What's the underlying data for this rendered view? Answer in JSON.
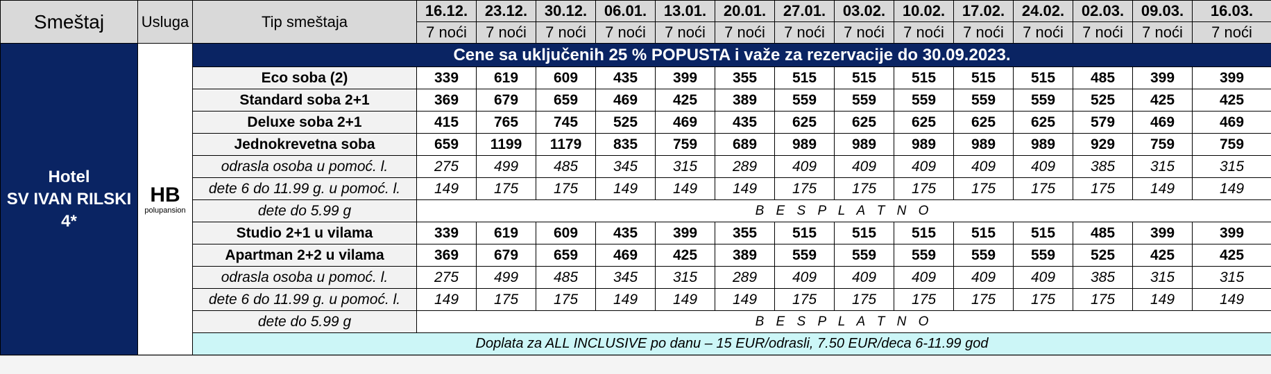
{
  "header": {
    "accommodation": "Smeštaj",
    "service": "Usluga",
    "room_type": "Tip smeštaja",
    "dates": [
      "16.12.",
      "23.12.",
      "30.12.",
      "06.01.",
      "13.01.",
      "20.01.",
      "27.01.",
      "03.02.",
      "10.02.",
      "17.02.",
      "24.02.",
      "02.03.",
      "09.03.",
      "16.03."
    ],
    "nights": [
      "7 noći",
      "7 noći",
      "7 noći",
      "7 noći",
      "7 noći",
      "7 noći",
      "7 noći",
      "7 noći",
      "7 noći",
      "7 noći",
      "7 noći",
      "7 noći",
      "7 noći",
      "7 noći"
    ]
  },
  "hotel": {
    "line1": "Hotel",
    "line2": "SV IVAN RILSKI",
    "line3": "4*"
  },
  "service": {
    "code": "HB",
    "name": "polupansion"
  },
  "banner": "Cene sa uključenih 25 % POPUSTA i važe za rezervacije do 30.09.2023.",
  "rows": [
    {
      "label": "Eco soba (2)",
      "values": [
        "339",
        "619",
        "609",
        "435",
        "399",
        "355",
        "515",
        "515",
        "515",
        "515",
        "515",
        "485",
        "399",
        "399"
      ]
    },
    {
      "label": "Standard soba 2+1",
      "values": [
        "369",
        "679",
        "659",
        "469",
        "425",
        "389",
        "559",
        "559",
        "559",
        "559",
        "559",
        "525",
        "425",
        "425"
      ]
    },
    {
      "label": "Deluxe soba 2+1",
      "values": [
        "415",
        "765",
        "745",
        "525",
        "469",
        "435",
        "625",
        "625",
        "625",
        "625",
        "625",
        "579",
        "469",
        "469"
      ]
    },
    {
      "label": "Jednokrevetna soba",
      "values": [
        "659",
        "1199",
        "1179",
        "835",
        "759",
        "689",
        "989",
        "989",
        "989",
        "989",
        "989",
        "929",
        "759",
        "759"
      ]
    },
    {
      "label": "odrasla osoba u pomoć. l.",
      "values": [
        "275",
        "499",
        "485",
        "345",
        "315",
        "289",
        "409",
        "409",
        "409",
        "409",
        "409",
        "385",
        "315",
        "315"
      ]
    },
    {
      "label": "dete 6 do 11.99 g. u pomoć. l.",
      "values": [
        "149",
        "175",
        "175",
        "149",
        "149",
        "149",
        "175",
        "175",
        "175",
        "175",
        "175",
        "175",
        "149",
        "149"
      ]
    },
    {
      "label": "dete do 5.99 g",
      "free": "B E S P L A T N O"
    },
    {
      "label": "Studio 2+1 u vilama",
      "values": [
        "339",
        "619",
        "609",
        "435",
        "399",
        "355",
        "515",
        "515",
        "515",
        "515",
        "515",
        "485",
        "399",
        "399"
      ]
    },
    {
      "label": "Apartman 2+2 u vilama",
      "values": [
        "369",
        "679",
        "659",
        "469",
        "425",
        "389",
        "559",
        "559",
        "559",
        "559",
        "559",
        "525",
        "425",
        "425"
      ]
    },
    {
      "label": "odrasla osoba u pomoć. l.",
      "values": [
        "275",
        "499",
        "485",
        "345",
        "315",
        "289",
        "409",
        "409",
        "409",
        "409",
        "409",
        "385",
        "315",
        "315"
      ]
    },
    {
      "label": "dete 6 do 11.99 g. u pomoć. l.",
      "values": [
        "149",
        "175",
        "175",
        "149",
        "149",
        "149",
        "175",
        "175",
        "175",
        "175",
        "175",
        "175",
        "149",
        "149"
      ]
    },
    {
      "label": "dete do 5.99 g",
      "free": "B E S P L A T N O"
    }
  ],
  "footer_note": "Doplata za ALL INCLUSIVE po danu – 15 EUR/odrasli, 7.50 EUR/deca 6-11.99 god",
  "colors": {
    "navy": "#0a2463",
    "header_gray": "#d9d9d9",
    "row_gray": "#f2f2f2",
    "note_cyan": "#ccf6f7"
  }
}
